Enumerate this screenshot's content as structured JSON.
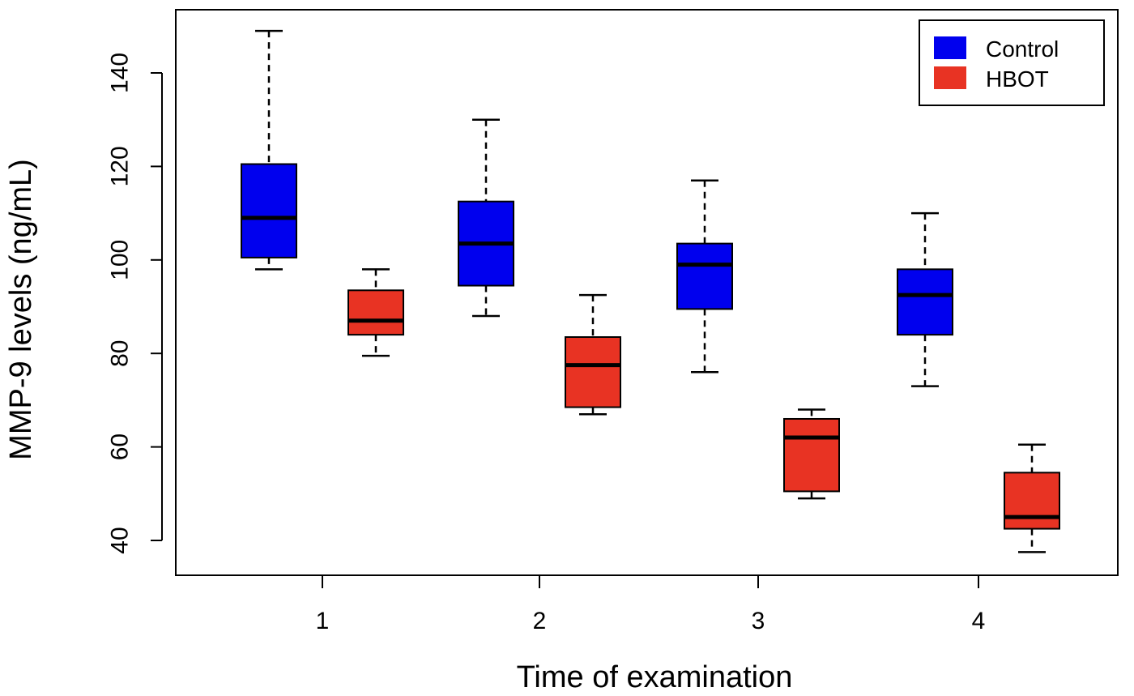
{
  "chart_data": {
    "type": "box",
    "xlabel": "Time of examination",
    "ylabel": "MMP-9 levels (ng/mL)",
    "categories": [
      "1",
      "2",
      "3",
      "4"
    ],
    "ylim": [
      33,
      153
    ],
    "yticks": [
      40,
      60,
      80,
      100,
      120,
      140
    ],
    "grid": false,
    "legend_position": "top-right",
    "series": [
      {
        "name": "Control",
        "color": "#0000ee",
        "boxes": [
          {
            "min": 98,
            "q1": 100.5,
            "median": 109,
            "q3": 120.5,
            "max": 149
          },
          {
            "min": 88,
            "q1": 94.5,
            "median": 103.5,
            "q3": 112.5,
            "max": 130
          },
          {
            "min": 76,
            "q1": 89.5,
            "median": 99,
            "q3": 103.5,
            "max": 117
          },
          {
            "min": 73,
            "q1": 84,
            "median": 92.5,
            "q3": 98,
            "max": 110
          }
        ]
      },
      {
        "name": "HBOT",
        "color": "#e83323",
        "boxes": [
          {
            "min": 79.5,
            "q1": 84,
            "median": 87,
            "q3": 93.5,
            "max": 98
          },
          {
            "min": 67,
            "q1": 68.5,
            "median": 77.5,
            "q3": 83.5,
            "max": 92.5
          },
          {
            "min": 49,
            "q1": 50.5,
            "median": 62,
            "q3": 66,
            "max": 68
          },
          {
            "min": 37.5,
            "q1": 42.5,
            "median": 45,
            "q3": 54.5,
            "max": 60.5
          }
        ]
      }
    ]
  }
}
